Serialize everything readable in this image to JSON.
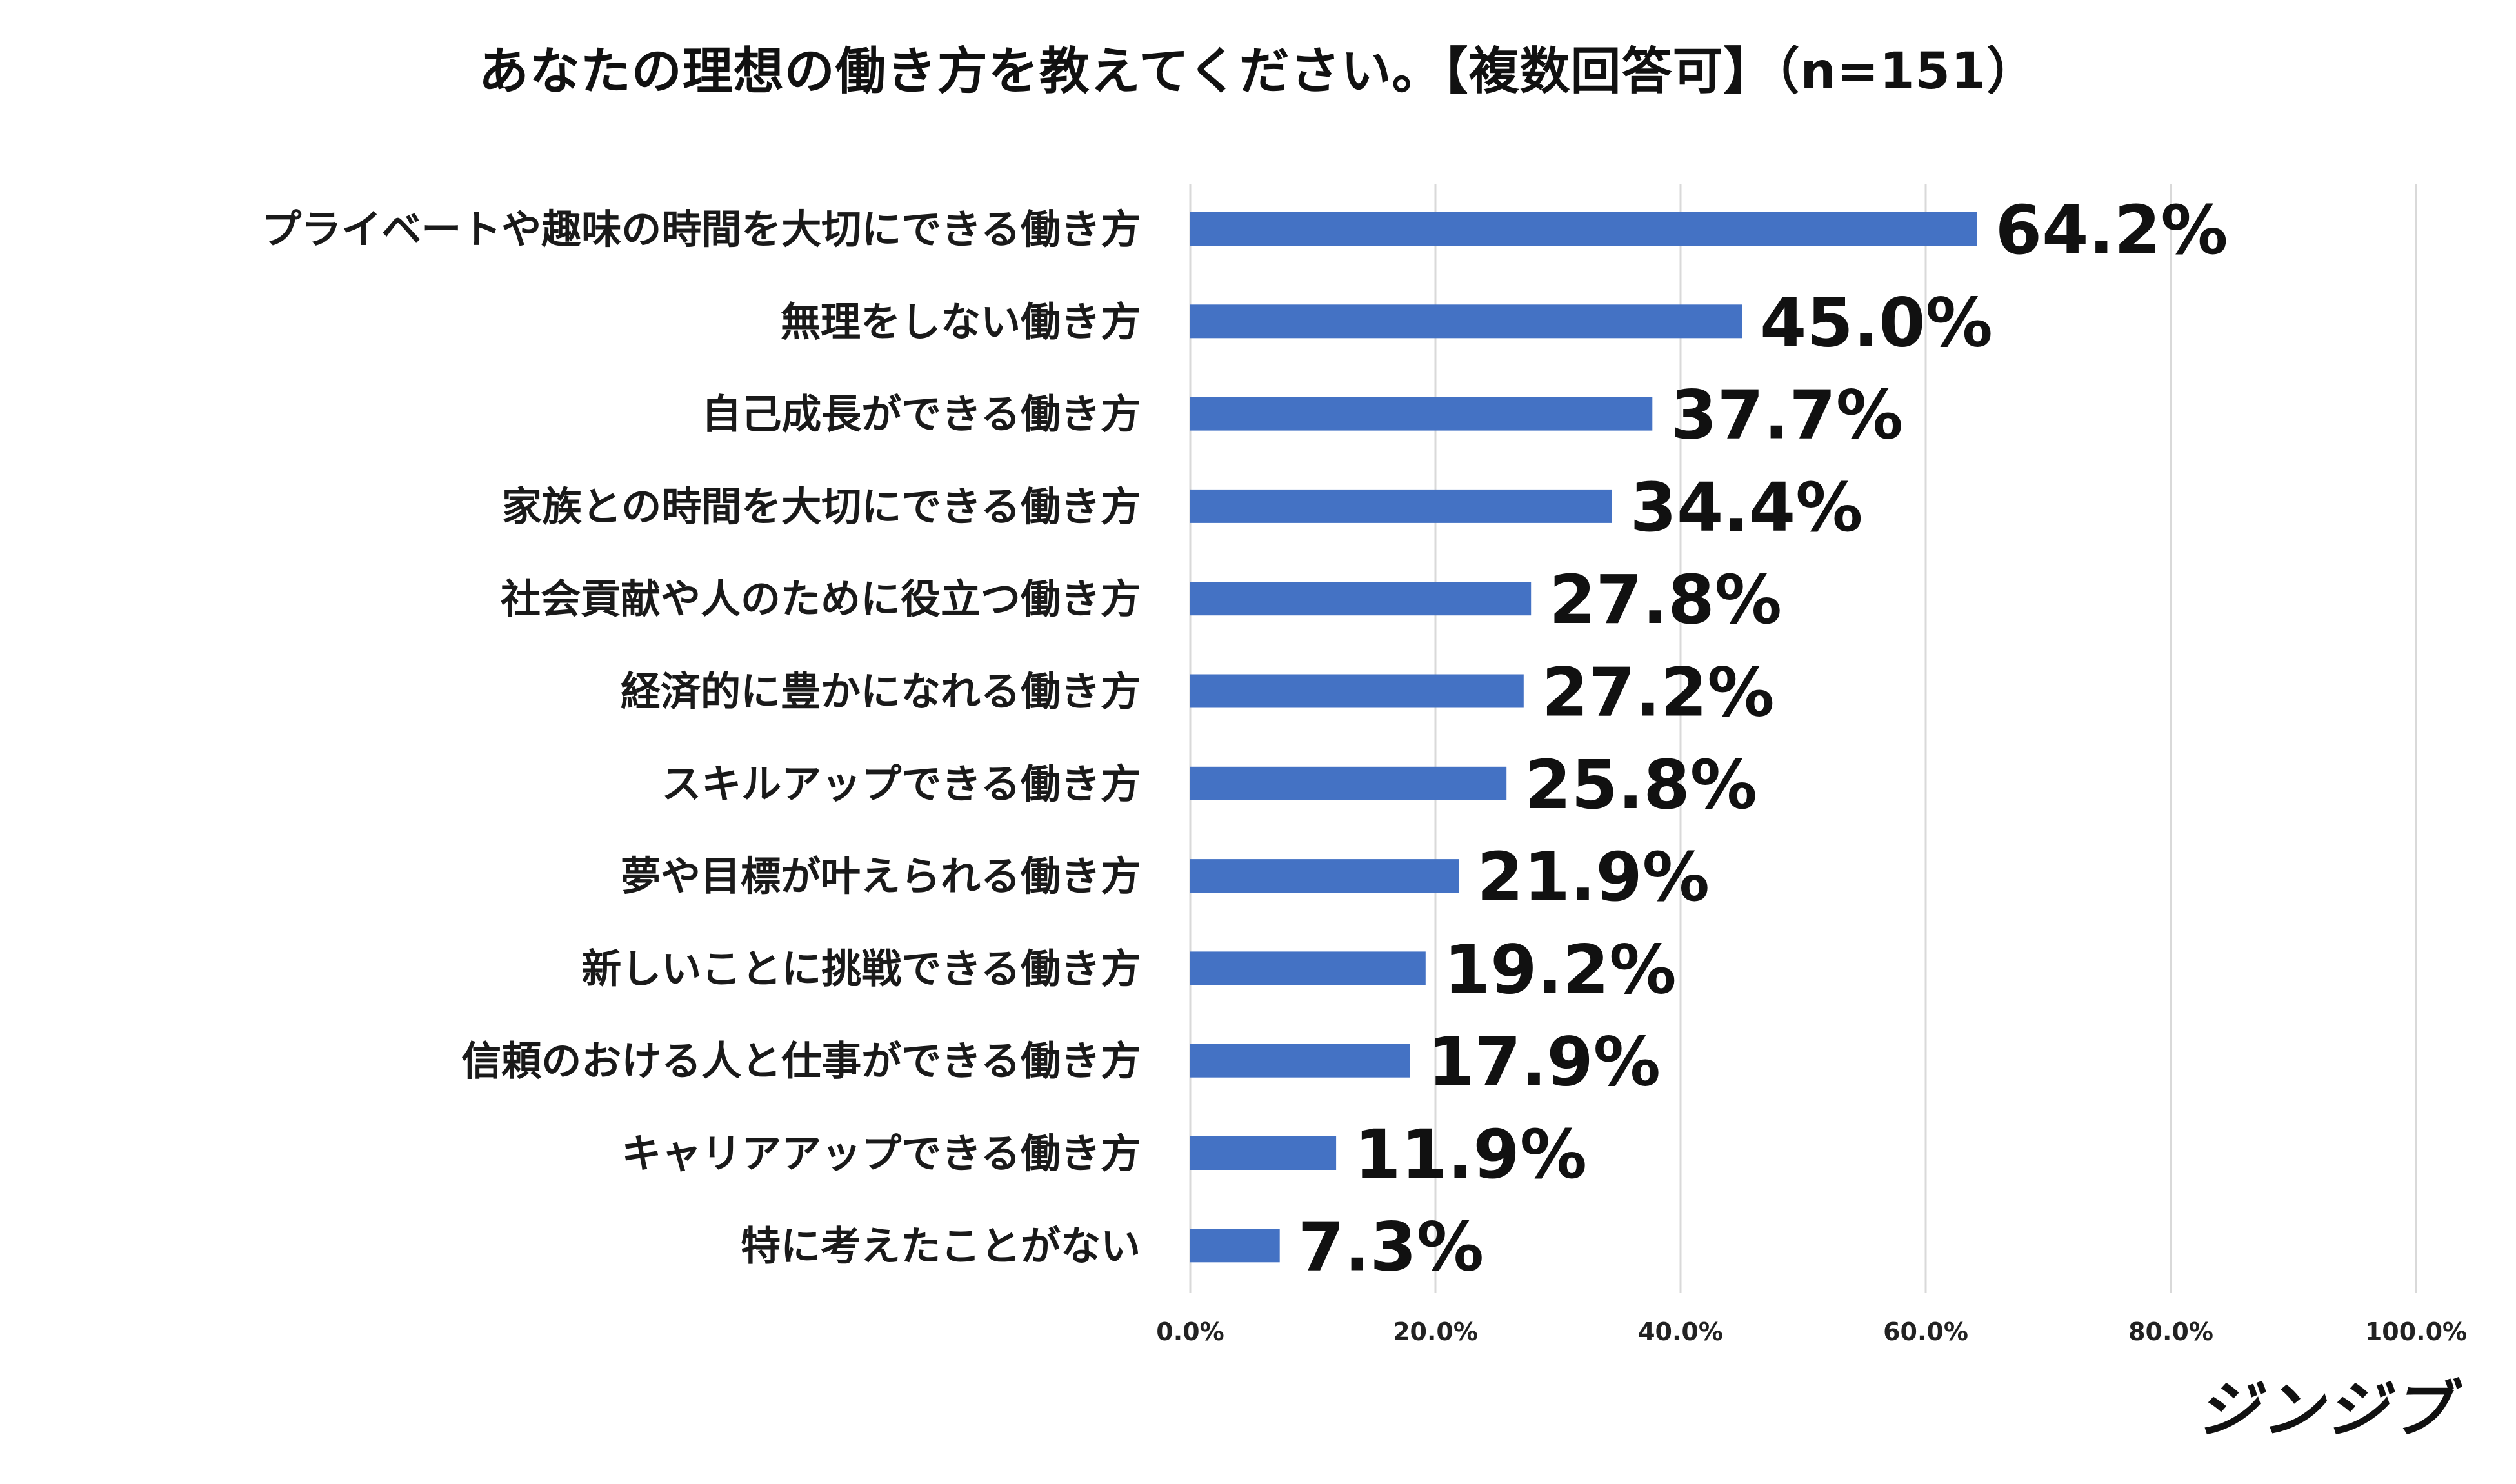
{
  "chart_data": {
    "type": "bar",
    "orientation": "horizontal",
    "title": "あなたの理想の働き方を教えてください。【複数回答可】（n=151）",
    "xlabel": "",
    "ylabel": "",
    "xlim": [
      0,
      100
    ],
    "grid": true,
    "legend": "none",
    "categories": [
      "プライベートや趣味の時間を大切にできる働き方",
      "無理をしない働き方",
      "自己成長ができる働き方",
      "家族との時間を大切にできる働き方",
      "社会貢献や人のために役立つ働き方",
      "経済的に豊かになれる働き方",
      "スキルアップできる働き方",
      "夢や目標が叶えられる働き方",
      "新しいことに挑戦できる働き方",
      "信頼のおける人と仕事ができる働き方",
      "キャリアアップできる働き方",
      "特に考えたことがない"
    ],
    "values": [
      64.2,
      45.0,
      37.7,
      34.4,
      27.8,
      27.2,
      25.8,
      21.9,
      19.2,
      17.9,
      11.9,
      7.3
    ],
    "value_labels": [
      "64.2%",
      "45.0%",
      "37.7%",
      "34.4%",
      "27.8%",
      "27.2%",
      "25.8%",
      "21.9%",
      "19.2%",
      "17.9%",
      "11.9%",
      "7.3%"
    ],
    "ticks": [
      0,
      20,
      40,
      60,
      80,
      100
    ],
    "tick_labels": [
      "0.0%",
      "20.0%",
      "40.0%",
      "60.0%",
      "80.0%",
      "100.0%"
    ],
    "bar_color": "#4472C4",
    "grid_color": "#D9D9D9"
  },
  "brand": {
    "logo_text": "ジンジブ"
  }
}
